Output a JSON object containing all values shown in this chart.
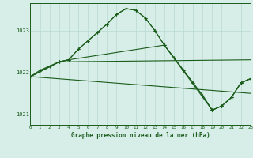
{
  "title": "Graphe pression niveau de la mer (hPa)",
  "bg_color": "#d6ede8",
  "grid_color": "#b8d8d0",
  "line_color": "#1a5c1a",
  "xlim": [
    0,
    23
  ],
  "ylim": [
    1020.75,
    1023.65
  ],
  "yticks": [
    1021,
    1022,
    1023
  ],
  "xticks": [
    0,
    1,
    2,
    3,
    4,
    5,
    6,
    7,
    8,
    9,
    10,
    11,
    12,
    13,
    14,
    15,
    16,
    17,
    18,
    19,
    20,
    21,
    22,
    23
  ],
  "series1_x": [
    0,
    1,
    2,
    3,
    4,
    5,
    6,
    7,
    8,
    9,
    10,
    11,
    12,
    13,
    14,
    15,
    16,
    17,
    18,
    19,
    20,
    21,
    22,
    23
  ],
  "series1_y": [
    1021.9,
    1022.05,
    1022.15,
    1022.25,
    1022.3,
    1022.55,
    1022.75,
    1022.95,
    1023.15,
    1023.38,
    1023.52,
    1023.48,
    1023.3,
    1023.0,
    1022.65,
    1022.35,
    1022.05,
    1021.75,
    1021.45,
    1021.1,
    1021.2,
    1021.4,
    1021.75,
    1021.85
  ],
  "series2_x": [
    0,
    3,
    4,
    5,
    6,
    7,
    8,
    9,
    10,
    11,
    12,
    13,
    14,
    15,
    16,
    17,
    18,
    19,
    20,
    21,
    22,
    23
  ],
  "series2_y": [
    1021.9,
    1022.25,
    1022.3,
    1022.55,
    1022.75,
    1022.95,
    1023.15,
    1023.38,
    1023.52,
    1023.48,
    1023.3,
    1023.0,
    1022.65,
    1022.35,
    1022.05,
    1021.75,
    1021.45,
    1021.1,
    1021.2,
    1021.4,
    1021.75,
    1021.85
  ],
  "series3_x": [
    0,
    3,
    4,
    14,
    19,
    20,
    21,
    22,
    23
  ],
  "series3_y": [
    1021.9,
    1022.25,
    1022.3,
    1022.65,
    1021.1,
    1021.2,
    1021.4,
    1021.75,
    1021.85
  ],
  "series4_x": [
    0,
    3,
    23
  ],
  "series4_y": [
    1021.9,
    1022.25,
    1022.3
  ],
  "series5_x": [
    0,
    23
  ],
  "series5_y": [
    1021.9,
    1021.5
  ]
}
